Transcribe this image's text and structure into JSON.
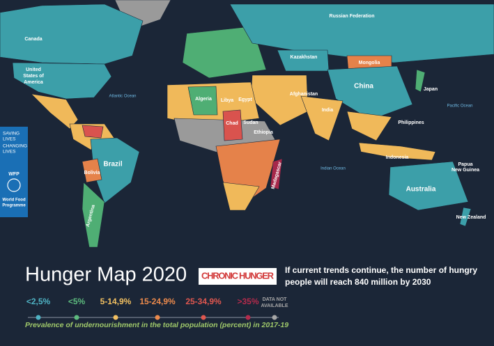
{
  "map": {
    "countries": [
      "Canada",
      [
        "United",
        "States of",
        "America"
      ],
      "Russian Federation",
      "Kazakhstan",
      "Mongolia",
      "China",
      "Japan",
      "India",
      "Afghanistan",
      "Algeria",
      "Libya",
      "Egypt",
      "Chad",
      "Sudan",
      "Ethiopia",
      "Madagascar",
      "Brazil",
      "Bolivia",
      "Argentina",
      "Indonesia",
      [
        "Papua",
        "New Guinea"
      ],
      "Australia",
      "New Zealand",
      "Philippines"
    ],
    "oceans": [
      "Atlantic Ocean",
      "Pacific Ocean",
      "Indian Ocean"
    ]
  },
  "side_panel": {
    "tagline": [
      "SAVING",
      "LIVES",
      "CHANGING",
      "LIVES"
    ],
    "logo": "WFP",
    "org": [
      "World Food",
      "Programme"
    ]
  },
  "header": {
    "title": "Hunger Map 2020",
    "badge": "CHRONIC HUNGER",
    "headline": [
      "If current trends continue, the number of hungry",
      "people will reach 840 million by 2030"
    ]
  },
  "legend": {
    "items": [
      {
        "label": "<2,5%",
        "color": "#4fb3c4"
      },
      {
        "label": "<5%",
        "color": "#5dbb7e"
      },
      {
        "label": "5-14,9%",
        "color": "#f2c061"
      },
      {
        "label": "15-24,9%",
        "color": "#ec8a4c"
      },
      {
        "label": "25-34,9%",
        "color": "#e0574f"
      },
      {
        "label": ">35%",
        "color": "#b32b4c"
      },
      {
        "label": [
          "DATA NOT",
          "AVAILABLE"
        ],
        "color": "#a7a7a7"
      }
    ],
    "caption": "Prevalence of undernourishment in the total population (percent) in 2017-19"
  }
}
